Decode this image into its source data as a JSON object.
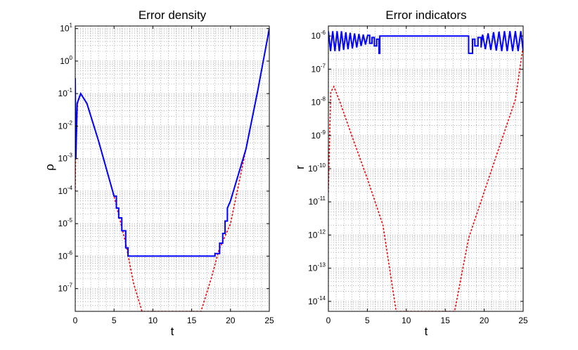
{
  "chart_data": [
    {
      "type": "line",
      "title": "Error density",
      "xlabel": "t",
      "ylabel": "ρ",
      "yscale": "log",
      "xlim": [
        0,
        25
      ],
      "ylim": [
        2e-08,
        12
      ],
      "x_ticks": [
        "0",
        "5",
        "10",
        "15",
        "20",
        "25"
      ],
      "x_tick_values": [
        0,
        5,
        10,
        15,
        20,
        25
      ],
      "y_tick_exponents": [
        "-7",
        "-6",
        "-5",
        "-4",
        "-3",
        "-2",
        "-1",
        "0",
        "1"
      ],
      "grid": true,
      "series": [
        {
          "style": "dotted",
          "color": "#ff0000",
          "x": [
            0.0,
            0.05,
            0.3,
            0.7,
            1.5,
            3,
            5,
            6.5,
            7.5,
            8.6,
            9,
            15.5,
            16.2,
            17.5,
            18.5,
            20,
            22,
            23.5,
            25
          ],
          "y": [
            0.0001,
            0.001,
            0.05,
            0.1,
            0.05,
            0.0035,
            7e-05,
            2.5e-06,
            1.5e-07,
            2e-08,
            2e-08,
            2e-08,
            2e-08,
            2e-07,
            1.5e-06,
            1e-05,
            0.002,
            0.12,
            10
          ]
        },
        {
          "style": "solid",
          "color": "#0000ff",
          "x": [
            0.0,
            0.08,
            0.25,
            0.7,
            1.5,
            3,
            5,
            5.3,
            5.3,
            5.6,
            5.6,
            6.0,
            6.0,
            6.5,
            6.5,
            6.8,
            6.8,
            18.0,
            18.0,
            18.6,
            18.6,
            19.0,
            19.0,
            19.3,
            19.3,
            19.6,
            19.6,
            20,
            22,
            23.5,
            25
          ],
          "y": [
            0.3,
            0.001,
            0.05,
            0.1,
            0.05,
            0.0035,
            7e-05,
            7e-05,
            3e-05,
            3e-05,
            1.5e-05,
            1.5e-05,
            6e-06,
            6e-06,
            1.8e-06,
            1.8e-06,
            1e-06,
            1e-06,
            1.2e-06,
            1.2e-06,
            2.5e-06,
            2.5e-06,
            5e-06,
            5e-06,
            1.2e-05,
            1.2e-05,
            3e-05,
            5e-05,
            0.002,
            0.12,
            10
          ]
        }
      ]
    },
    {
      "type": "line",
      "title": "Error indicators",
      "xlabel": "t",
      "ylabel": "r",
      "yscale": "log",
      "xlim": [
        0,
        25
      ],
      "ylim": [
        5e-15,
        2e-06
      ],
      "x_ticks": [
        "0",
        "5",
        "10",
        "15",
        "20",
        "25"
      ],
      "x_tick_values": [
        0,
        5,
        10,
        15,
        20,
        25
      ],
      "y_tick_exponents": [
        "-14",
        "-13",
        "-12",
        "-11",
        "-10",
        "-9",
        "-8",
        "-7",
        "-6"
      ],
      "grid": true,
      "series": [
        {
          "style": "dotted",
          "color": "#ff0000",
          "x": [
            0.0,
            0.3,
            0.7,
            1.5,
            3,
            5,
            7,
            8.7,
            9,
            15.5,
            16.2,
            18,
            20,
            22,
            24,
            25
          ],
          "y": [
            2e-11,
            2e-08,
            3e-08,
            1e-08,
            1e-09,
            5e-11,
            2e-12,
            5e-15,
            5e-15,
            5e-15,
            5e-15,
            8e-13,
            2e-11,
            5e-10,
            1.2e-08,
            5e-07
          ]
        },
        {
          "style": "solid",
          "color": "#0000ff",
          "x": [
            0.0,
            0.28,
            0.56,
            0.84,
            1.12,
            1.4,
            1.68,
            1.96,
            2.24,
            2.52,
            2.8,
            3.08,
            3.36,
            3.64,
            3.92,
            4.2,
            4.48,
            4.76,
            5.04,
            5.3,
            5.3,
            5.6,
            5.6,
            5.9,
            5.9,
            6.2,
            6.2,
            6.5,
            6.5,
            6.6,
            6.6,
            7.0,
            7.0,
            18.0,
            18.0,
            18.5,
            18.5,
            18.8,
            18.8,
            19.2,
            19.2,
            19.6,
            19.6,
            19.8,
            20.15,
            20.5,
            20.85,
            21.2,
            21.55,
            21.9,
            22.25,
            22.6,
            22.95,
            23.3,
            23.65,
            24.0,
            24.35,
            24.7,
            25.0
          ],
          "y": [
            1.4e-06,
            3.5e-07,
            1.4e-06,
            3.5e-07,
            1.4e-06,
            3.5e-07,
            1.4e-06,
            3.8e-07,
            1.3e-06,
            4e-07,
            1.25e-06,
            4.2e-07,
            1.2e-06,
            4.5e-07,
            1.15e-06,
            5e-07,
            1.1e-06,
            5.5e-07,
            1.05e-06,
            1.05e-06,
            6e-07,
            6e-07,
            9e-07,
            9e-07,
            5e-07,
            5e-07,
            8e-07,
            8e-07,
            3e-07,
            3e-07,
            1e-06,
            1e-06,
            1e-06,
            1e-06,
            3e-07,
            3e-07,
            8e-07,
            8e-07,
            5e-07,
            5e-07,
            9e-07,
            9e-07,
            4.5e-07,
            1.1e-06,
            4e-07,
            1.2e-06,
            3.8e-07,
            1.3e-06,
            3.6e-07,
            1.35e-06,
            3.5e-07,
            1.4e-06,
            3.5e-07,
            1.4e-06,
            3.5e-07,
            1.4e-06,
            3.5e-07,
            1.4e-06,
            3.5e-07
          ]
        }
      ]
    }
  ]
}
